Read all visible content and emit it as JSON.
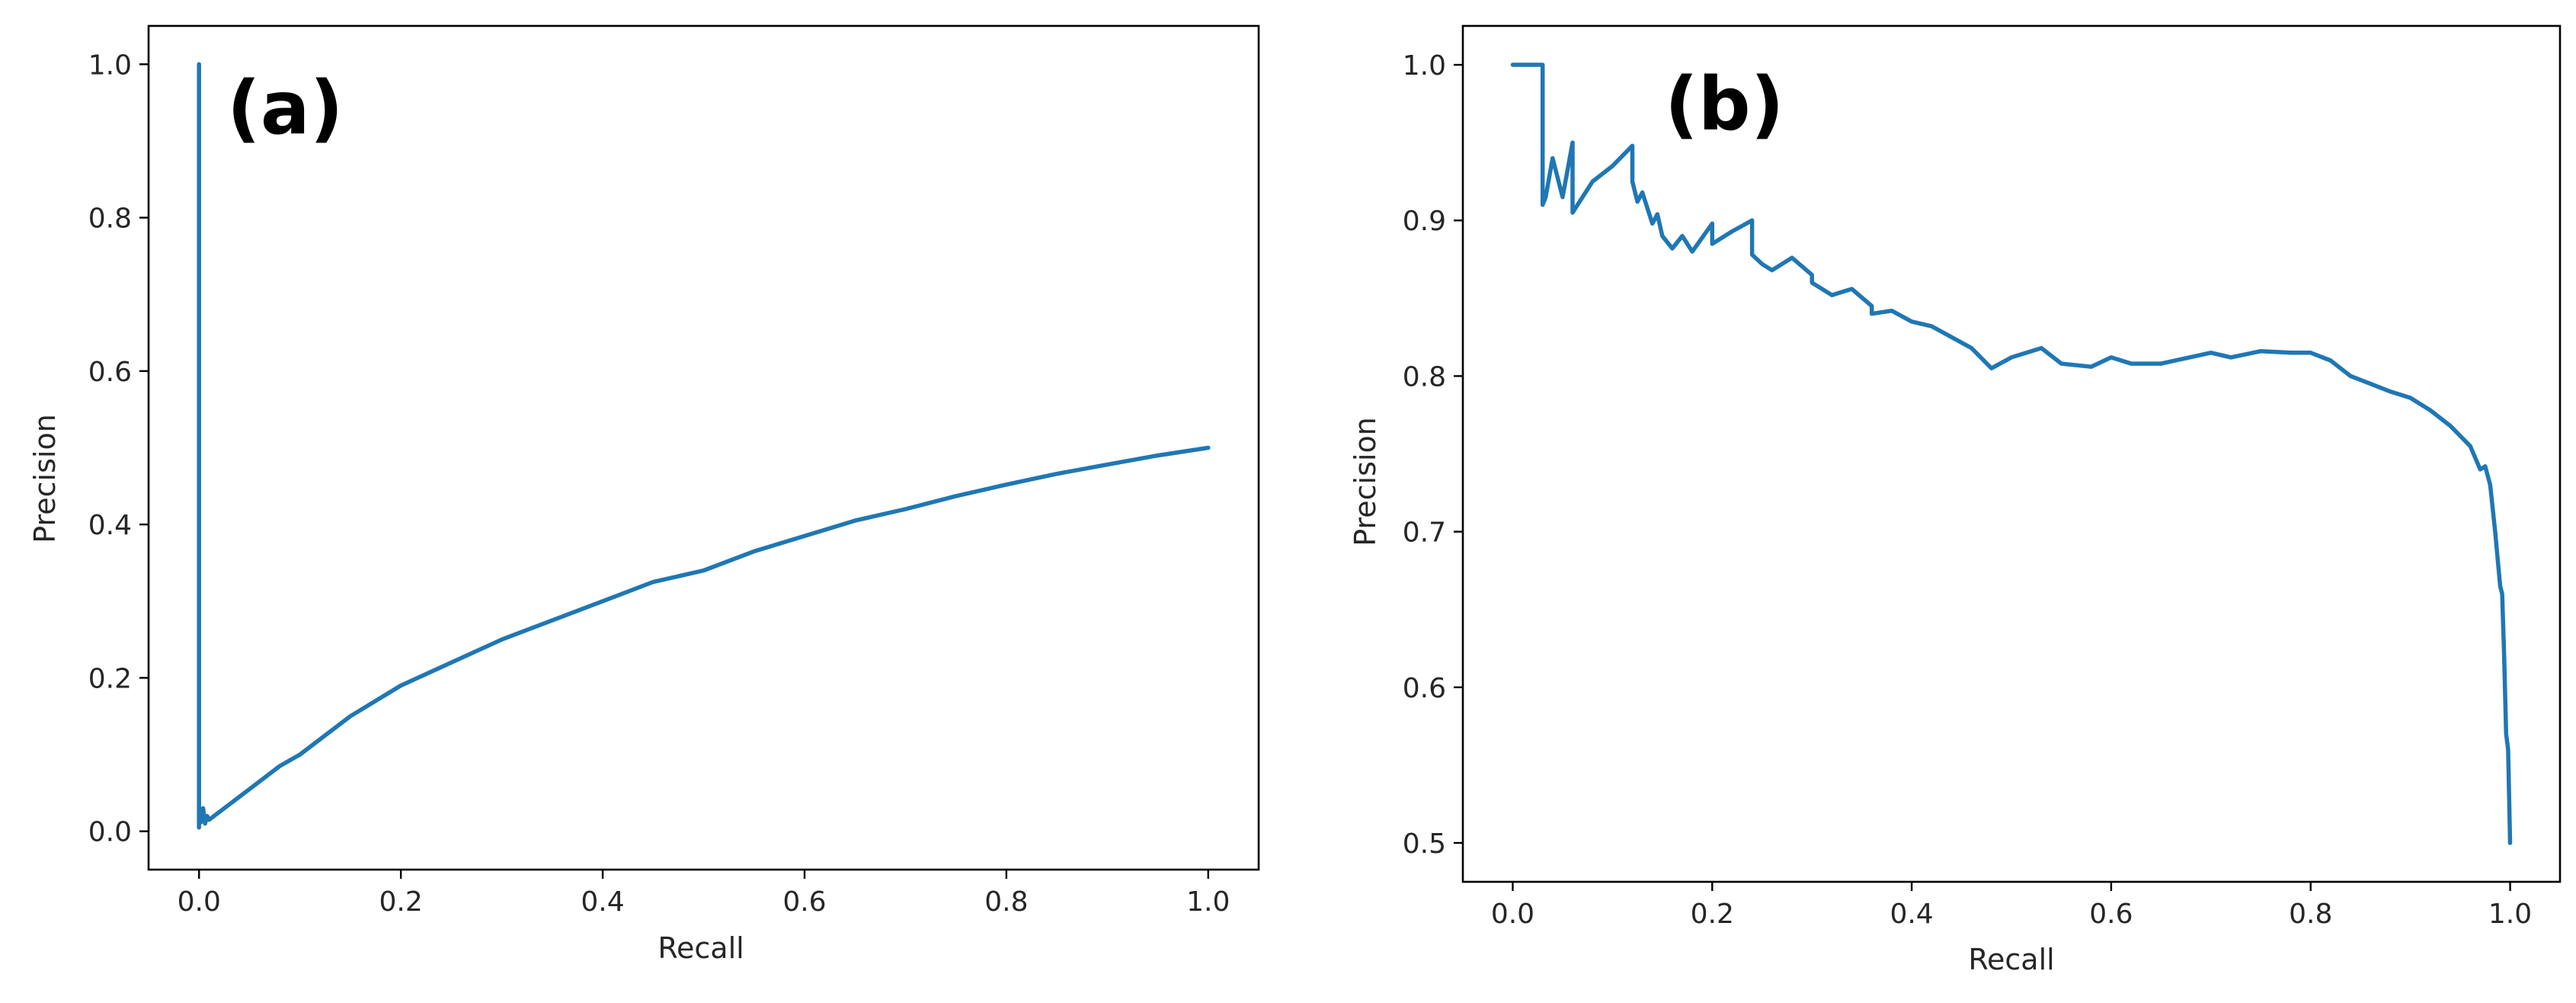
{
  "colors": {
    "series": "#1f77b4",
    "axis": "#000000",
    "text": "#262626"
  },
  "chart_data": [
    {
      "type": "line",
      "title": "",
      "panel_label": "(a)",
      "xlabel": "Recall",
      "ylabel": "Precision",
      "xlim": [
        -0.05,
        1.05
      ],
      "ylim": [
        -0.05,
        1.05
      ],
      "xticks": [
        0.0,
        0.2,
        0.4,
        0.6,
        0.8,
        1.0
      ],
      "yticks": [
        0.0,
        0.2,
        0.4,
        0.6,
        0.8,
        1.0
      ],
      "xtick_labels": [
        "0.0",
        "0.2",
        "0.4",
        "0.6",
        "0.8",
        "1.0"
      ],
      "ytick_labels": [
        "0.0",
        "0.2",
        "0.4",
        "0.6",
        "0.8",
        "1.0"
      ],
      "grid": false,
      "series": [
        {
          "x": [
            0.0,
            0.0,
            0.0,
            0.002,
            0.004,
            0.006,
            0.008,
            0.01,
            0.02,
            0.04,
            0.06,
            0.08,
            0.1,
            0.15,
            0.2,
            0.25,
            0.3,
            0.35,
            0.4,
            0.45,
            0.5,
            0.55,
            0.6,
            0.65,
            0.7,
            0.75,
            0.8,
            0.85,
            0.9,
            0.95,
            1.0
          ],
          "y": [
            1.0,
            0.005,
            0.03,
            0.012,
            0.03,
            0.01,
            0.02,
            0.015,
            0.025,
            0.045,
            0.065,
            0.085,
            0.1,
            0.15,
            0.19,
            0.22,
            0.25,
            0.275,
            0.3,
            0.325,
            0.34,
            0.365,
            0.385,
            0.405,
            0.42,
            0.437,
            0.452,
            0.466,
            0.478,
            0.49,
            0.5
          ]
        }
      ]
    },
    {
      "type": "line",
      "title": "",
      "panel_label": "(b)",
      "xlabel": "Recall",
      "ylabel": "Precision",
      "xlim": [
        -0.05,
        1.05
      ],
      "ylim": [
        0.475,
        1.025
      ],
      "xticks": [
        0.0,
        0.2,
        0.4,
        0.6,
        0.8,
        1.0
      ],
      "yticks": [
        0.5,
        0.6,
        0.7,
        0.8,
        0.9,
        1.0
      ],
      "xtick_labels": [
        "0.0",
        "0.2",
        "0.4",
        "0.6",
        "0.8",
        "1.0"
      ],
      "ytick_labels": [
        "0.5",
        "0.6",
        "0.7",
        "0.8",
        "0.9",
        "1.0"
      ],
      "grid": false,
      "series": [
        {
          "x": [
            0.0,
            0.03,
            0.03,
            0.033,
            0.04,
            0.05,
            0.06,
            0.06,
            0.08,
            0.1,
            0.12,
            0.12,
            0.125,
            0.13,
            0.14,
            0.145,
            0.15,
            0.16,
            0.17,
            0.18,
            0.2,
            0.2,
            0.22,
            0.24,
            0.24,
            0.25,
            0.26,
            0.28,
            0.3,
            0.3,
            0.32,
            0.34,
            0.36,
            0.36,
            0.38,
            0.4,
            0.42,
            0.44,
            0.46,
            0.48,
            0.5,
            0.53,
            0.55,
            0.58,
            0.6,
            0.62,
            0.65,
            0.7,
            0.72,
            0.75,
            0.78,
            0.8,
            0.82,
            0.84,
            0.86,
            0.88,
            0.9,
            0.92,
            0.94,
            0.96,
            0.97,
            0.975,
            0.98,
            0.985,
            0.99,
            0.992,
            0.994,
            0.996,
            0.997,
            0.998,
            1.0
          ],
          "y": [
            1.0,
            1.0,
            0.91,
            0.915,
            0.94,
            0.915,
            0.95,
            0.905,
            0.925,
            0.935,
            0.948,
            0.925,
            0.912,
            0.918,
            0.898,
            0.904,
            0.89,
            0.882,
            0.89,
            0.88,
            0.898,
            0.885,
            0.893,
            0.9,
            0.878,
            0.872,
            0.868,
            0.876,
            0.865,
            0.86,
            0.852,
            0.856,
            0.845,
            0.84,
            0.842,
            0.835,
            0.832,
            0.825,
            0.818,
            0.805,
            0.812,
            0.818,
            0.808,
            0.806,
            0.812,
            0.808,
            0.808,
            0.815,
            0.812,
            0.816,
            0.815,
            0.815,
            0.81,
            0.8,
            0.795,
            0.79,
            0.786,
            0.778,
            0.768,
            0.755,
            0.74,
            0.742,
            0.73,
            0.7,
            0.665,
            0.66,
            0.62,
            0.57,
            0.565,
            0.56,
            0.5
          ]
        }
      ]
    }
  ]
}
